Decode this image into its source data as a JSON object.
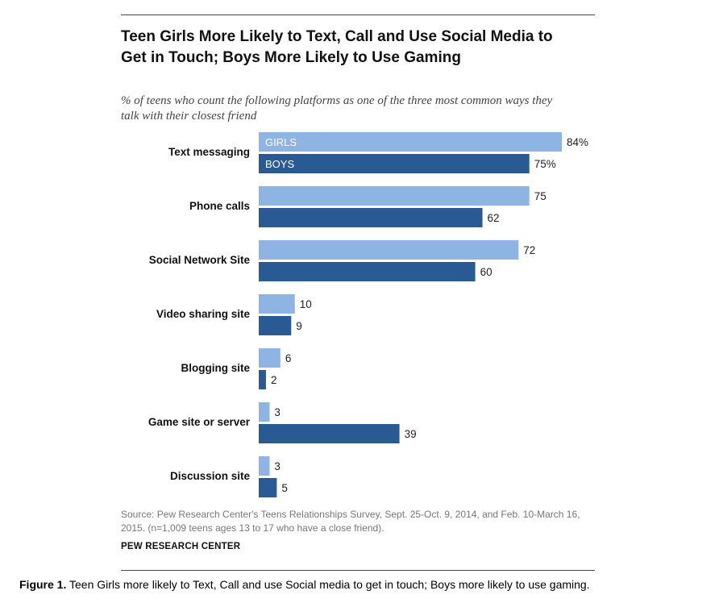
{
  "chart_data": {
    "type": "bar",
    "orientation": "horizontal",
    "title": "Teen Girls More Likely to Text, Call and Use Social Media to Get in Touch; Boys More Likely to Use Gaming",
    "subtitle": "% of teens who count the following platforms as one of the three most common ways they talk with their closest friend",
    "categories": [
      "Text messaging",
      "Phone calls",
      "Social Network Site",
      "Video sharing site",
      "Blogging site",
      "Game site or server",
      "Discussion site"
    ],
    "series": [
      {
        "name": "GIRLS",
        "color": "#8db4e2",
        "values": [
          84,
          75,
          72,
          10,
          6,
          3,
          3
        ],
        "value_labels": [
          "84%",
          "75",
          "72",
          "10",
          "6",
          "3",
          "3"
        ]
      },
      {
        "name": "BOYS",
        "color": "#2a5a94",
        "values": [
          75,
          62,
          60,
          9,
          2,
          39,
          5
        ],
        "value_labels": [
          "75%",
          "62",
          "60",
          "9",
          "2",
          "39",
          "5"
        ]
      }
    ],
    "xlim": [
      0,
      84
    ],
    "legend": "inside-first-bars",
    "grid": false
  },
  "source_note": "Source: Pew Research Center's Teens Relationships Survey, Sept. 25-Oct. 9, 2014, and Feb. 10-March 16, 2015. (n=1,009 teens ages 13 to 17 who have a close friend).",
  "brand": "PEW RESEARCH CENTER",
  "caption": {
    "label": "Figure 1.",
    "text": " Teen Girls more likely to Text, Call and use Social media to get in touch; Boys more likely to use gaming."
  }
}
